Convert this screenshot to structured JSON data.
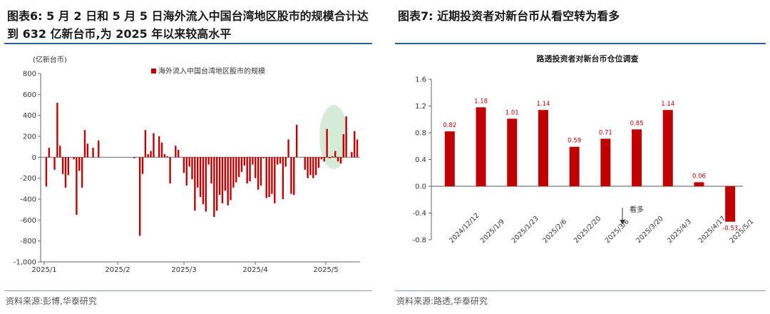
{
  "left": {
    "title_line1": "图表6:  5 月 2 日和 5 月 5 日海外流入中国台湾地区股市的规模合计达",
    "title_line2": "到 632 亿新台币,为 2025 年以来较高水平",
    "source": "资料来源:彭博,华泰研究"
  },
  "right": {
    "title": "图表7:  近期投资者对新台币从看空转为看多",
    "source": "资料来源:路透,华泰研究"
  },
  "chart_data": [
    {
      "type": "bar",
      "title": "",
      "unit_label": "(亿新台币)",
      "series": [
        {
          "name": "海外流入中国台湾地区股市的规模",
          "color": "#c00000"
        }
      ],
      "ylim": [
        -1000,
        800
      ],
      "yticks": [
        "800",
        "600",
        "400",
        "200",
        "0",
        "-200",
        "-400",
        "-600",
        "-800",
        "-1,000"
      ],
      "xticks": [
        "2025/1",
        "2025/2",
        "2025/3",
        "2025/4",
        "2025/5"
      ],
      "values": [
        -280,
        90,
        0,
        -120,
        520,
        110,
        -160,
        -290,
        -170,
        0,
        -20,
        -550,
        -130,
        -290,
        260,
        130,
        0,
        90,
        0,
        160,
        0,
        0,
        0,
        0,
        0,
        0,
        0,
        0,
        0,
        0,
        0,
        0,
        -10,
        0,
        -750,
        -160,
        260,
        30,
        60,
        230,
        0,
        200,
        140,
        30,
        10,
        -250,
        0,
        110,
        70,
        0,
        -150,
        -270,
        -90,
        -210,
        -510,
        -290,
        -380,
        -450,
        -520,
        -70,
        -250,
        -570,
        -510,
        -360,
        -440,
        -320,
        -460,
        -410,
        -290,
        -240,
        -190,
        -140,
        -80,
        -250,
        -230,
        -70,
        -200,
        -310,
        -270,
        -10,
        -390,
        -380,
        -350,
        -440,
        -70,
        -60,
        -400,
        -90,
        170,
        -350,
        -360,
        310,
        0,
        0,
        -120,
        -200,
        -170,
        -200,
        -170,
        -100,
        -20,
        -40,
        270,
        -10,
        10,
        60,
        -40,
        -60,
        220,
        390,
        0,
        50,
        250,
        170
      ],
      "highlight": "2025/5 ellipse"
    },
    {
      "type": "bar",
      "title": "路透投资者对新台币仓位调查",
      "categories": [
        "2024/12/12",
        "2025/1/9",
        "2025/1/23",
        "2025/2/6",
        "2025/2/20",
        "2025/3/6",
        "2025/3/20",
        "2025/4/3",
        "2025/4/17",
        "2025/5/1"
      ],
      "values": [
        0.82,
        1.18,
        1.01,
        1.14,
        0.59,
        0.71,
        0.85,
        1.14,
        0.06,
        -0.53
      ],
      "data_labels": [
        "0.82",
        "1.18",
        "1.01",
        "1.14",
        "0.59",
        "0.71",
        "0.85",
        "1.14",
        "0.06",
        "-0.53"
      ],
      "ylim": [
        -0.8,
        1.6
      ],
      "yticks": [
        "1.6",
        "1.2",
        "0.8",
        "0.4",
        "0.0",
        "-0.4",
        "-0.8"
      ],
      "annotation": "看多",
      "color": "#c00000"
    }
  ]
}
